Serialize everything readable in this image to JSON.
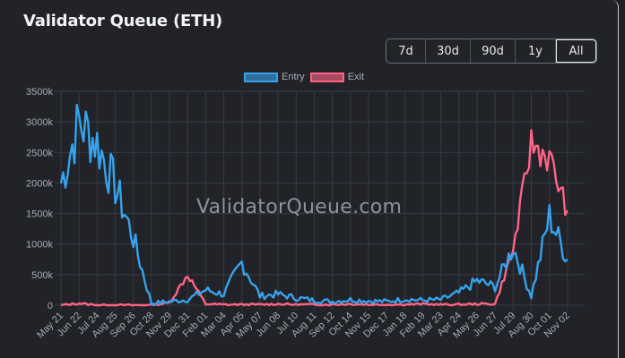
{
  "header": {
    "title": "Validator Queue (ETH)"
  },
  "range_selector": {
    "buttons": [
      {
        "label": "7d",
        "active": false
      },
      {
        "label": "30d",
        "active": false
      },
      {
        "label": "90d",
        "active": false
      },
      {
        "label": "1y",
        "active": false
      },
      {
        "label": "All",
        "active": true
      }
    ]
  },
  "legend": {
    "items": [
      {
        "label": "Entry",
        "color": "#36a2eb"
      },
      {
        "label": "Exit",
        "color": "#ff6384"
      }
    ]
  },
  "watermark": "ValidatorQueue.com",
  "colors": {
    "entry": "#36a2eb",
    "exit": "#ff6384",
    "background": "#212329",
    "grid": "#383b42"
  },
  "chart_data": {
    "type": "line",
    "title": "Validator Queue (ETH)",
    "xlabel": "",
    "ylabel": "",
    "ylim": [
      0,
      3500000
    ],
    "y_ticks": [
      "0",
      "500k",
      "1000k",
      "1500k",
      "2000k",
      "2500k",
      "3000k",
      "3500k"
    ],
    "grid": true,
    "legend_position": "top",
    "categories": [
      "May 21",
      "Jun 22",
      "Jul 24",
      "Aug 25",
      "Sep 26",
      "Oct 28",
      "Nov 29",
      "Dec 31",
      "Feb 01",
      "Mar 04",
      "Apr 05",
      "May 07",
      "Jun 08",
      "Jul 10",
      "Aug 11",
      "Sep 12",
      "Oct 14",
      "Nov 15",
      "Dec 17",
      "Jan 18",
      "Feb 19",
      "Mar 23",
      "Apr 24",
      "May 26",
      "Jun 27",
      "Jul 29",
      "Aug 30",
      "Oct 01",
      "Nov 02"
    ],
    "series": [
      {
        "name": "Entry",
        "color": "#36a2eb",
        "values_k": [
          2000,
          3000,
          2650,
          1950,
          1100,
          30,
          60,
          90,
          250,
          180,
          700,
          150,
          180,
          120,
          80,
          60,
          90,
          70,
          60,
          100,
          80,
          90,
          200,
          400,
          300,
          950,
          150,
          1450,
          750
        ]
      },
      {
        "name": "Exit",
        "color": "#ff6384",
        "values_k": [
          0,
          30,
          0,
          0,
          0,
          0,
          40,
          500,
          20,
          10,
          10,
          10,
          20,
          10,
          10,
          10,
          20,
          10,
          10,
          10,
          20,
          10,
          10,
          20,
          20,
          900,
          2650,
          2400,
          1550
        ]
      }
    ]
  }
}
